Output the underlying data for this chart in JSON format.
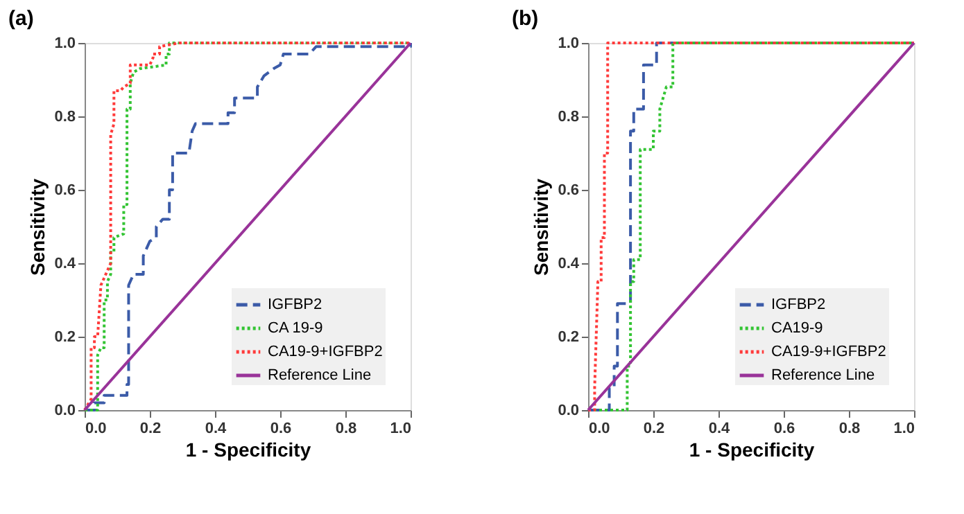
{
  "chart_data": [
    {
      "type": "line",
      "title": "(a)",
      "xlabel": "1 - Specificity",
      "ylabel": "Sensitivity",
      "xlim": [
        0,
        1
      ],
      "ylim": [
        0,
        1
      ],
      "xticks": [
        {
          "value": 0,
          "label": "0.0"
        },
        {
          "value": 0.2,
          "label": "0.2"
        },
        {
          "value": 0.4,
          "label": "0.4"
        },
        {
          "value": 0.6,
          "label": "0.6"
        },
        {
          "value": 0.8,
          "label": "0.8"
        },
        {
          "value": 1,
          "label": "1.0"
        }
      ],
      "yticks": [
        {
          "value": 0,
          "label": "0.0"
        },
        {
          "value": 0.2,
          "label": "0.2"
        },
        {
          "value": 0.4,
          "label": "0.4"
        },
        {
          "value": 0.6,
          "label": "0.6"
        },
        {
          "value": 0.8,
          "label": "0.8"
        },
        {
          "value": 1,
          "label": "1.0"
        }
      ],
      "grid": false,
      "legend": "bottom right",
      "marker": "none",
      "series": [
        {
          "name": "IGFBP2",
          "color": "#3b5ba8",
          "line_style": "dashed",
          "x": [
            0,
            0.03,
            0.03,
            0.06,
            0.06,
            0.13,
            0.13,
            0.135,
            0.135,
            0.15,
            0.18,
            0.18,
            0.2,
            0.22,
            0.22,
            0.24,
            0.26,
            0.26,
            0.27,
            0.27,
            0.32,
            0.33,
            0.34,
            0.44,
            0.44,
            0.46,
            0.46,
            0.53,
            0.53,
            0.55,
            0.58,
            0.6,
            0.61,
            0.69,
            0.71,
            1,
            1
          ],
          "values": [
            0,
            0,
            0.02,
            0.02,
            0.04,
            0.04,
            0.07,
            0.07,
            0.34,
            0.37,
            0.37,
            0.42,
            0.46,
            0.47,
            0.5,
            0.52,
            0.52,
            0.6,
            0.6,
            0.7,
            0.7,
            0.76,
            0.78,
            0.78,
            0.81,
            0.81,
            0.85,
            0.85,
            0.88,
            0.91,
            0.93,
            0.94,
            0.97,
            0.97,
            0.99,
            0.99,
            1
          ]
        },
        {
          "name": "CA 19-9",
          "color": "#33c433",
          "line_style": "dotted",
          "x": [
            0,
            0.04,
            0.04,
            0.05,
            0.06,
            0.06,
            0.07,
            0.07,
            0.08,
            0.08,
            0.09,
            0.09,
            0.12,
            0.12,
            0.13,
            0.13,
            0.14,
            0.14,
            0.15,
            0.17,
            0.25,
            0.25,
            0.26,
            0.26,
            1
          ],
          "values": [
            0,
            0,
            0.15,
            0.17,
            0.17,
            0.3,
            0.3,
            0.35,
            0.37,
            0.43,
            0.43,
            0.47,
            0.48,
            0.56,
            0.56,
            0.82,
            0.82,
            0.89,
            0.92,
            0.93,
            0.94,
            0.97,
            0.97,
            1,
            1
          ]
        },
        {
          "name": "CA19-9+IGFBP2",
          "color": "#ff3b3b",
          "line_style": "dotted",
          "x": [
            0,
            0.02,
            0.02,
            0.03,
            0.03,
            0.04,
            0.05,
            0.06,
            0.07,
            0.08,
            0.08,
            0.09,
            0.09,
            0.11,
            0.12,
            0.14,
            0.14,
            0.2,
            0.21,
            0.21,
            0.23,
            0.23,
            0.29,
            1
          ],
          "values": [
            0,
            0.03,
            0.17,
            0.17,
            0.2,
            0.2,
            0.34,
            0.36,
            0.38,
            0.4,
            0.75,
            0.78,
            0.87,
            0.87,
            0.88,
            0.89,
            0.94,
            0.94,
            0.96,
            0.97,
            0.97,
            0.99,
            1,
            1
          ]
        },
        {
          "name": "Reference Line",
          "color": "#993399",
          "line_style": "solid",
          "x": [
            0,
            1
          ],
          "values": [
            0,
            1
          ]
        }
      ]
    },
    {
      "type": "line",
      "title": "(b)",
      "xlabel": "1 - Specificity",
      "ylabel": "Sensitivity",
      "xlim": [
        0,
        1
      ],
      "ylim": [
        0,
        1
      ],
      "xticks": [
        {
          "value": 0,
          "label": "0.0"
        },
        {
          "value": 0.2,
          "label": "0.2"
        },
        {
          "value": 0.4,
          "label": "0.4"
        },
        {
          "value": 0.6,
          "label": "0.6"
        },
        {
          "value": 0.8,
          "label": "0.8"
        },
        {
          "value": 1,
          "label": "1.0"
        }
      ],
      "yticks": [
        {
          "value": 0,
          "label": "0.0"
        },
        {
          "value": 0.2,
          "label": "0.2"
        },
        {
          "value": 0.4,
          "label": "0.4"
        },
        {
          "value": 0.6,
          "label": "0.6"
        },
        {
          "value": 0.8,
          "label": "0.8"
        },
        {
          "value": 1,
          "label": "1.0"
        }
      ],
      "grid": false,
      "legend": "bottom right",
      "marker": "none",
      "series": [
        {
          "name": "IGFBP2",
          "color": "#3b5ba8",
          "line_style": "dashed",
          "x": [
            0,
            0.065,
            0.065,
            0.08,
            0.08,
            0.09,
            0.09,
            0.13,
            0.13,
            0.14,
            0.14,
            0.17,
            0.17,
            0.21,
            0.21,
            1
          ],
          "values": [
            0,
            0,
            0.06,
            0.06,
            0.12,
            0.12,
            0.29,
            0.29,
            0.76,
            0.76,
            0.82,
            0.82,
            0.94,
            0.94,
            1,
            1
          ]
        },
        {
          "name": "CA19-9",
          "color": "#33c433",
          "line_style": "dotted",
          "x": [
            0,
            0.12,
            0.12,
            0.13,
            0.13,
            0.14,
            0.14,
            0.16,
            0.16,
            0.2,
            0.2,
            0.22,
            0.22,
            0.24,
            0.26,
            0.26,
            1
          ],
          "values": [
            0,
            0,
            0.12,
            0.12,
            0.35,
            0.35,
            0.41,
            0.41,
            0.71,
            0.71,
            0.76,
            0.76,
            0.82,
            0.88,
            0.88,
            1,
            1
          ]
        },
        {
          "name": "CA19-9+IGFBP2",
          "color": "#ff3b3b",
          "line_style": "dotted",
          "x": [
            0,
            0.02,
            0.02,
            0.03,
            0.04,
            0.04,
            0.05,
            0.05,
            0.06,
            0.06,
            1
          ],
          "values": [
            0,
            0,
            0.06,
            0.35,
            0.35,
            0.47,
            0.47,
            0.7,
            0.7,
            1,
            1
          ]
        },
        {
          "name": "Reference Line",
          "color": "#993399",
          "line_style": "solid",
          "x": [
            0,
            1
          ],
          "values": [
            0,
            1
          ]
        }
      ]
    }
  ]
}
